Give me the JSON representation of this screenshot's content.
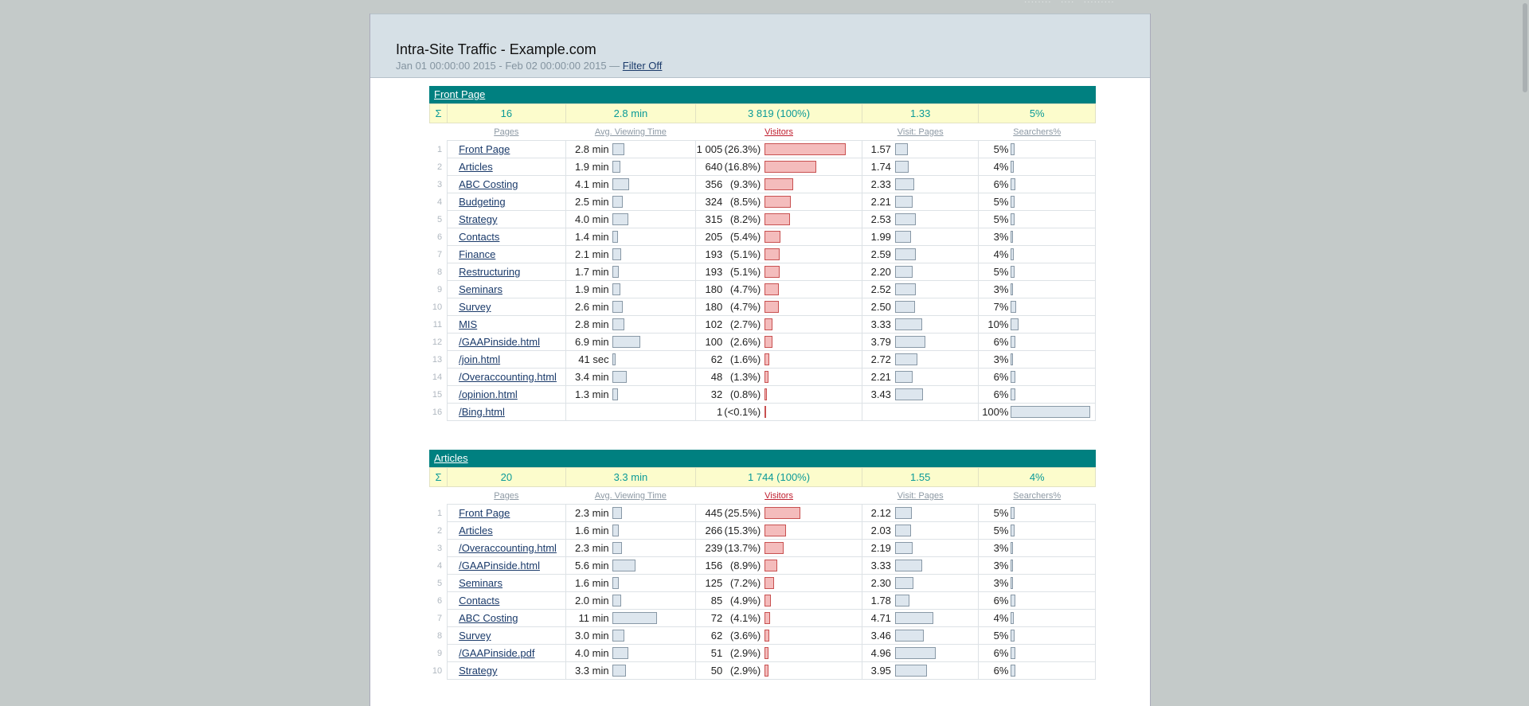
{
  "header": {
    "title": "Intra-Site Traffic - Example.com",
    "date_range": "Jan 01 00:00:00 2015 - Feb 02 00:00:00 2015 —",
    "filter_link": "Filter Off"
  },
  "column_headers": {
    "pages": "Pages",
    "avg_viewing_time": "Avg. Viewing Time",
    "visitors": "Visitors",
    "visit_pages": "Visit: Pages",
    "searchers": "Searchers%"
  },
  "sigma_symbol": "Σ",
  "sections": [
    {
      "name": "Front Page",
      "summary": {
        "pages": "16",
        "avg_time": "2.8 min",
        "visitors": "3 819 (100%)",
        "visit_pages": "1.33",
        "searchers": "5%"
      },
      "rows": [
        {
          "idx": "1",
          "page": "Front Page",
          "time": "2.8 min",
          "time_bar": 0.21,
          "visitors": "1 005",
          "pct": "(26.3%)",
          "vis_bar": 1.0,
          "vp": "1.57",
          "vp_bar": 0.17,
          "srch": "5%",
          "srch_bar": 0.05
        },
        {
          "idx": "2",
          "page": "Articles",
          "time": "1.9 min",
          "time_bar": 0.14,
          "visitors": "640",
          "pct": "(16.8%)",
          "vis_bar": 0.64,
          "vp": "1.74",
          "vp_bar": 0.18,
          "srch": "4%",
          "srch_bar": 0.04
        },
        {
          "idx": "3",
          "page": "ABC Costing",
          "time": "4.1 min",
          "time_bar": 0.3,
          "visitors": "356",
          "pct": "(9.3%)",
          "vis_bar": 0.35,
          "vp": "2.33",
          "vp_bar": 0.25,
          "srch": "6%",
          "srch_bar": 0.06
        },
        {
          "idx": "4",
          "page": "Budgeting",
          "time": "2.5 min",
          "time_bar": 0.18,
          "visitors": "324",
          "pct": "(8.5%)",
          "vis_bar": 0.32,
          "vp": "2.21",
          "vp_bar": 0.23,
          "srch": "5%",
          "srch_bar": 0.05
        },
        {
          "idx": "5",
          "page": "Strategy",
          "time": "4.0 min",
          "time_bar": 0.29,
          "visitors": "315",
          "pct": "(8.2%)",
          "vis_bar": 0.31,
          "vp": "2.53",
          "vp_bar": 0.27,
          "srch": "5%",
          "srch_bar": 0.05
        },
        {
          "idx": "6",
          "page": "Contacts",
          "time": "1.4 min",
          "time_bar": 0.1,
          "visitors": "205",
          "pct": "(5.4%)",
          "vis_bar": 0.2,
          "vp": "1.99",
          "vp_bar": 0.21,
          "srch": "3%",
          "srch_bar": 0.03
        },
        {
          "idx": "7",
          "page": "Finance",
          "time": "2.1 min",
          "time_bar": 0.15,
          "visitors": "193",
          "pct": "(5.1%)",
          "vis_bar": 0.19,
          "vp": "2.59",
          "vp_bar": 0.27,
          "srch": "4%",
          "srch_bar": 0.04
        },
        {
          "idx": "8",
          "page": "Restructuring",
          "time": "1.7 min",
          "time_bar": 0.12,
          "visitors": "193",
          "pct": "(5.1%)",
          "vis_bar": 0.19,
          "vp": "2.20",
          "vp_bar": 0.23,
          "srch": "5%",
          "srch_bar": 0.05
        },
        {
          "idx": "9",
          "page": "Seminars",
          "time": "1.9 min",
          "time_bar": 0.14,
          "visitors": "180",
          "pct": "(4.7%)",
          "vis_bar": 0.18,
          "vp": "2.52",
          "vp_bar": 0.27,
          "srch": "3%",
          "srch_bar": 0.03
        },
        {
          "idx": "10",
          "page": "Survey",
          "time": "2.6 min",
          "time_bar": 0.19,
          "visitors": "180",
          "pct": "(4.7%)",
          "vis_bar": 0.18,
          "vp": "2.50",
          "vp_bar": 0.26,
          "srch": "7%",
          "srch_bar": 0.07
        },
        {
          "idx": "11",
          "page": "MIS",
          "time": "2.8 min",
          "time_bar": 0.21,
          "visitors": "102",
          "pct": "(2.7%)",
          "vis_bar": 0.1,
          "vp": "3.33",
          "vp_bar": 0.35,
          "srch": "10%",
          "srch_bar": 0.1
        },
        {
          "idx": "12",
          "page": "/GAAPinside.html",
          "time": "6.9 min",
          "time_bar": 0.5,
          "visitors": "100",
          "pct": "(2.6%)",
          "vis_bar": 0.1,
          "vp": "3.79",
          "vp_bar": 0.4,
          "srch": "6%",
          "srch_bar": 0.06
        },
        {
          "idx": "13",
          "page": "/join.html",
          "time": "41 sec",
          "time_bar": 0.05,
          "visitors": "62",
          "pct": "(1.6%)",
          "vis_bar": 0.06,
          "vp": "2.72",
          "vp_bar": 0.29,
          "srch": "3%",
          "srch_bar": 0.03
        },
        {
          "idx": "14",
          "page": "/Overaccounting.html",
          "time": "3.4 min",
          "time_bar": 0.25,
          "visitors": "48",
          "pct": "(1.3%)",
          "vis_bar": 0.05,
          "vp": "2.21",
          "vp_bar": 0.23,
          "srch": "6%",
          "srch_bar": 0.06
        },
        {
          "idx": "15",
          "page": "/opinion.html",
          "time": "1.3 min",
          "time_bar": 0.1,
          "visitors": "32",
          "pct": "(0.8%)",
          "vis_bar": 0.03,
          "vp": "3.43",
          "vp_bar": 0.36,
          "srch": "6%",
          "srch_bar": 0.06
        },
        {
          "idx": "16",
          "page": "/Bing.html",
          "time": "",
          "time_bar": 0,
          "visitors": "1",
          "pct": "(<0.1%)",
          "vis_bar": 0.01,
          "vp": "",
          "vp_bar": 0,
          "srch": "100%",
          "srch_bar": 1.0
        }
      ]
    },
    {
      "name": "Articles",
      "summary": {
        "pages": "20",
        "avg_time": "3.3 min",
        "visitors": "1 744 (100%)",
        "visit_pages": "1.55",
        "searchers": "4%"
      },
      "rows": [
        {
          "idx": "1",
          "page": "Front Page",
          "time": "2.3 min",
          "time_bar": 0.17,
          "visitors": "445",
          "pct": "(25.5%)",
          "vis_bar": 0.44,
          "vp": "2.12",
          "vp_bar": 0.22,
          "srch": "5%",
          "srch_bar": 0.05
        },
        {
          "idx": "2",
          "page": "Articles",
          "time": "1.6 min",
          "time_bar": 0.12,
          "visitors": "266",
          "pct": "(15.3%)",
          "vis_bar": 0.26,
          "vp": "2.03",
          "vp_bar": 0.21,
          "srch": "5%",
          "srch_bar": 0.05
        },
        {
          "idx": "3",
          "page": "/Overaccounting.html",
          "time": "2.3 min",
          "time_bar": 0.17,
          "visitors": "239",
          "pct": "(13.7%)",
          "vis_bar": 0.24,
          "vp": "2.19",
          "vp_bar": 0.23,
          "srch": "3%",
          "srch_bar": 0.03
        },
        {
          "idx": "4",
          "page": "/GAAPinside.html",
          "time": "5.6 min",
          "time_bar": 0.41,
          "visitors": "156",
          "pct": "(8.9%)",
          "vis_bar": 0.16,
          "vp": "3.33",
          "vp_bar": 0.35,
          "srch": "3%",
          "srch_bar": 0.03
        },
        {
          "idx": "5",
          "page": "Seminars",
          "time": "1.6 min",
          "time_bar": 0.12,
          "visitors": "125",
          "pct": "(7.2%)",
          "vis_bar": 0.12,
          "vp": "2.30",
          "vp_bar": 0.24,
          "srch": "3%",
          "srch_bar": 0.03
        },
        {
          "idx": "6",
          "page": "Contacts",
          "time": "2.0 min",
          "time_bar": 0.15,
          "visitors": "85",
          "pct": "(4.9%)",
          "vis_bar": 0.08,
          "vp": "1.78",
          "vp_bar": 0.19,
          "srch": "6%",
          "srch_bar": 0.06
        },
        {
          "idx": "7",
          "page": "ABC Costing",
          "time": "11 min",
          "time_bar": 0.8,
          "visitors": "72",
          "pct": "(4.1%)",
          "vis_bar": 0.07,
          "vp": "4.71",
          "vp_bar": 0.5,
          "srch": "4%",
          "srch_bar": 0.04
        },
        {
          "idx": "8",
          "page": "Survey",
          "time": "3.0 min",
          "time_bar": 0.22,
          "visitors": "62",
          "pct": "(3.6%)",
          "vis_bar": 0.06,
          "vp": "3.46",
          "vp_bar": 0.37,
          "srch": "5%",
          "srch_bar": 0.05
        },
        {
          "idx": "9",
          "page": "/GAAPinside.pdf",
          "time": "4.0 min",
          "time_bar": 0.29,
          "visitors": "51",
          "pct": "(2.9%)",
          "vis_bar": 0.05,
          "vp": "4.96",
          "vp_bar": 0.53,
          "srch": "6%",
          "srch_bar": 0.06
        },
        {
          "idx": "10",
          "page": "Strategy",
          "time": "3.3 min",
          "time_bar": 0.24,
          "visitors": "50",
          "pct": "(2.9%)",
          "vis_bar": 0.05,
          "vp": "3.95",
          "vp_bar": 0.42,
          "srch": "6%",
          "srch_bar": 0.06
        }
      ]
    }
  ]
}
